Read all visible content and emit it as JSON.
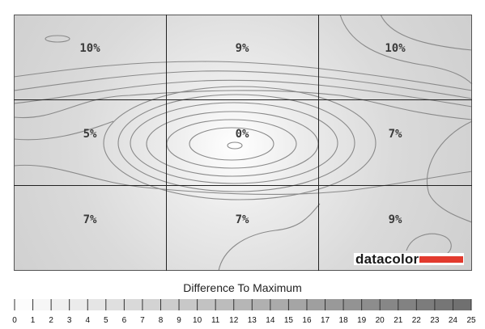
{
  "chart_data": {
    "type": "heatmap",
    "title": "Difference To Maximum",
    "grid": {
      "rows": 3,
      "cols": 3
    },
    "cells": [
      [
        "10%",
        "9%",
        "10%"
      ],
      [
        "5%",
        "0%",
        "7%"
      ],
      [
        "7%",
        "7%",
        "9%"
      ]
    ],
    "values": [
      [
        10,
        9,
        10
      ],
      [
        5,
        0,
        7
      ],
      [
        7,
        7,
        9
      ]
    ],
    "scale": {
      "min": 0,
      "max": 25,
      "ticks": [
        "0",
        "1",
        "2",
        "3",
        "4",
        "5",
        "6",
        "7",
        "8",
        "9",
        "10",
        "11",
        "12",
        "13",
        "14",
        "15",
        "16",
        "17",
        "18",
        "19",
        "20",
        "21",
        "22",
        "23",
        "24",
        "25"
      ]
    },
    "logo": {
      "text": "datacolor",
      "accent_color": "#e23a2e"
    },
    "colors": {
      "background": "#d0d0d0",
      "center": "#ffffff",
      "contour": "#8a8a8a",
      "grid_line": "#222222"
    }
  }
}
